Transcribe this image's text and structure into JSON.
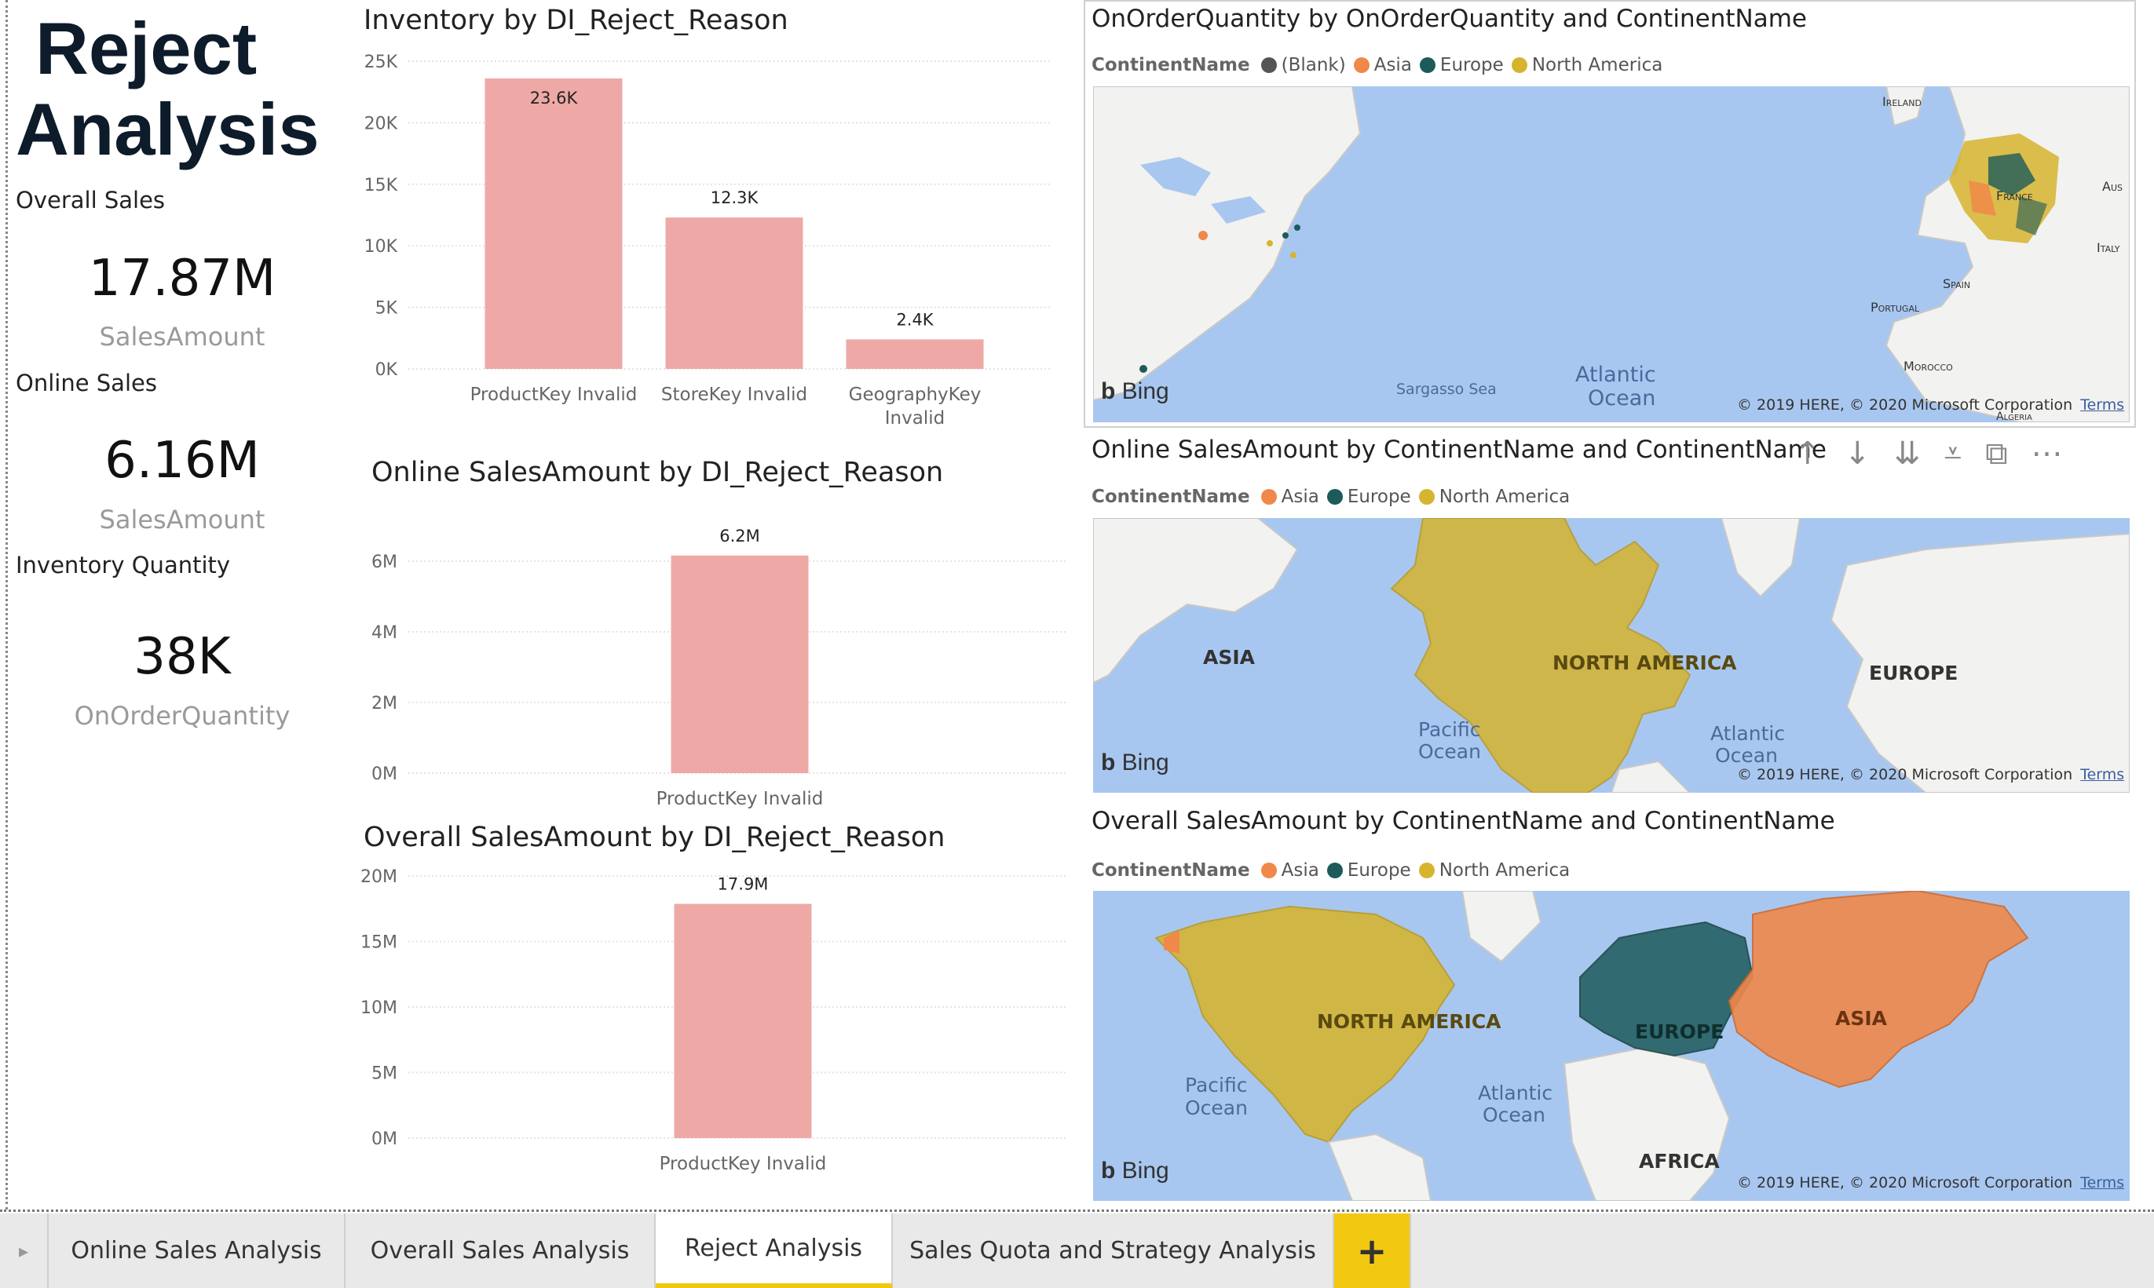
{
  "page": {
    "title_line1": "Reject",
    "title_line2": "Analysis"
  },
  "kpis": [
    {
      "label": "Overall Sales",
      "value": "17.87M",
      "sub": "SalesAmount"
    },
    {
      "label": "Online Sales",
      "value": "6.16M",
      "sub": "SalesAmount"
    },
    {
      "label": "Inventory Quantity",
      "value": "38K",
      "sub": "OnOrderQuantity"
    }
  ],
  "charts": {
    "inventory": {
      "title": "Inventory by DI_Reject_Reason"
    },
    "online": {
      "title": "Online SalesAmount by DI_Reject_Reason"
    },
    "overall": {
      "title": "Overall SalesAmount by DI_Reject_Reason"
    }
  },
  "chart_data": [
    {
      "type": "bar",
      "title": "Inventory by DI_Reject_Reason",
      "categories": [
        "ProductKey Invalid",
        "StoreKey Invalid",
        "GeographyKey Invalid"
      ],
      "values": [
        23600,
        12300,
        2400
      ],
      "data_labels": [
        "23.6K",
        "12.3K",
        "2.4K"
      ],
      "yticks": [
        "0K",
        "5K",
        "10K",
        "15K",
        "20K",
        "25K"
      ],
      "ylim": [
        0,
        25000
      ],
      "color": "#eea9a7",
      "grid": true
    },
    {
      "type": "bar",
      "title": "Online SalesAmount by DI_Reject_Reason",
      "categories": [
        "ProductKey Invalid"
      ],
      "values": [
        6160000
      ],
      "data_labels": [
        "6.2M"
      ],
      "yticks": [
        "0M",
        "2M",
        "4M",
        "6M"
      ],
      "ylim": [
        0,
        7000000
      ],
      "color": "#eea9a7",
      "grid": true
    },
    {
      "type": "bar",
      "title": "Overall SalesAmount by DI_Reject_Reason",
      "categories": [
        "ProductKey Invalid"
      ],
      "values": [
        17870000
      ],
      "data_labels": [
        "17.9M"
      ],
      "yticks": [
        "0M",
        "5M",
        "10M",
        "15M",
        "20M"
      ],
      "ylim": [
        0,
        20000000
      ],
      "color": "#eea9a7",
      "grid": true
    }
  ],
  "maps": {
    "onorder": {
      "title": "OnOrderQuantity by OnOrderQuantity and ContinentName",
      "legend_label": "ContinentName",
      "legend": [
        {
          "name": "(Blank)",
          "color": "#555555"
        },
        {
          "name": "Asia",
          "color": "#f0884a"
        },
        {
          "name": "Europe",
          "color": "#1d5a5a"
        },
        {
          "name": "North America",
          "color": "#d6b42e"
        }
      ],
      "labels": {
        "ireland": "Ireland",
        "france": "France",
        "aus": "Aus",
        "italy": "Italy",
        "spain": "Spain",
        "portugal": "Portugal",
        "morocco": "Morocco",
        "algeria": "Algeria",
        "sargasso": "Sargasso Sea",
        "atlantic1": "Atlantic",
        "atlantic2": "Ocean"
      },
      "copyright": "© 2019 HERE, © 2020 Microsoft Corporation",
      "terms": "Terms",
      "bing": "Bing"
    },
    "online": {
      "title": "Online SalesAmount by ContinentName and ContinentName",
      "legend_label": "ContinentName",
      "legend": [
        {
          "name": "Asia",
          "color": "#f0884a"
        },
        {
          "name": "Europe",
          "color": "#1d5a5a"
        },
        {
          "name": "North America",
          "color": "#d6b42e"
        }
      ],
      "labels": {
        "asia": "ASIA",
        "na": "NORTH AMERICA",
        "europe": "EUROPE",
        "pacific1": "Pacific",
        "pacific2": "Ocean",
        "atlantic1": "Atlantic",
        "atlantic2": "Ocean"
      },
      "copyright": "© 2019 HERE, © 2020 Microsoft Corporation",
      "terms": "Terms",
      "bing": "Bing"
    },
    "overall": {
      "title": "Overall SalesAmount by ContinentName and ContinentName",
      "legend_label": "ContinentName",
      "legend": [
        {
          "name": "Asia",
          "color": "#f0884a"
        },
        {
          "name": "Europe",
          "color": "#1d5a5a"
        },
        {
          "name": "North America",
          "color": "#d6b42e"
        }
      ],
      "labels": {
        "na": "NORTH AMERICA",
        "europe": "EUROPE",
        "asia": "ASIA",
        "africa": "AFRICA",
        "pacific1": "Pacific",
        "pacific2": "Ocean",
        "atlantic1": "Atlantic",
        "atlantic2": "Ocean"
      },
      "copyright": "© 2019 HERE, © 2020 Microsoft Corporation",
      "terms": "Terms",
      "bing": "Bing"
    }
  },
  "toolbar": {
    "icons": [
      "arrow-up-icon",
      "arrow-down-icon",
      "double-arrow-down-icon",
      "expand-hierarchy-icon",
      "focus-mode-icon",
      "more-options-icon"
    ]
  },
  "tabs": [
    {
      "label": "Online Sales Analysis",
      "active": false
    },
    {
      "label": "Overall Sales Analysis",
      "active": false
    },
    {
      "label": "Reject Analysis",
      "active": true
    },
    {
      "label": "Sales Quota and Strategy Analysis",
      "active": false
    }
  ],
  "add_tab": "+"
}
